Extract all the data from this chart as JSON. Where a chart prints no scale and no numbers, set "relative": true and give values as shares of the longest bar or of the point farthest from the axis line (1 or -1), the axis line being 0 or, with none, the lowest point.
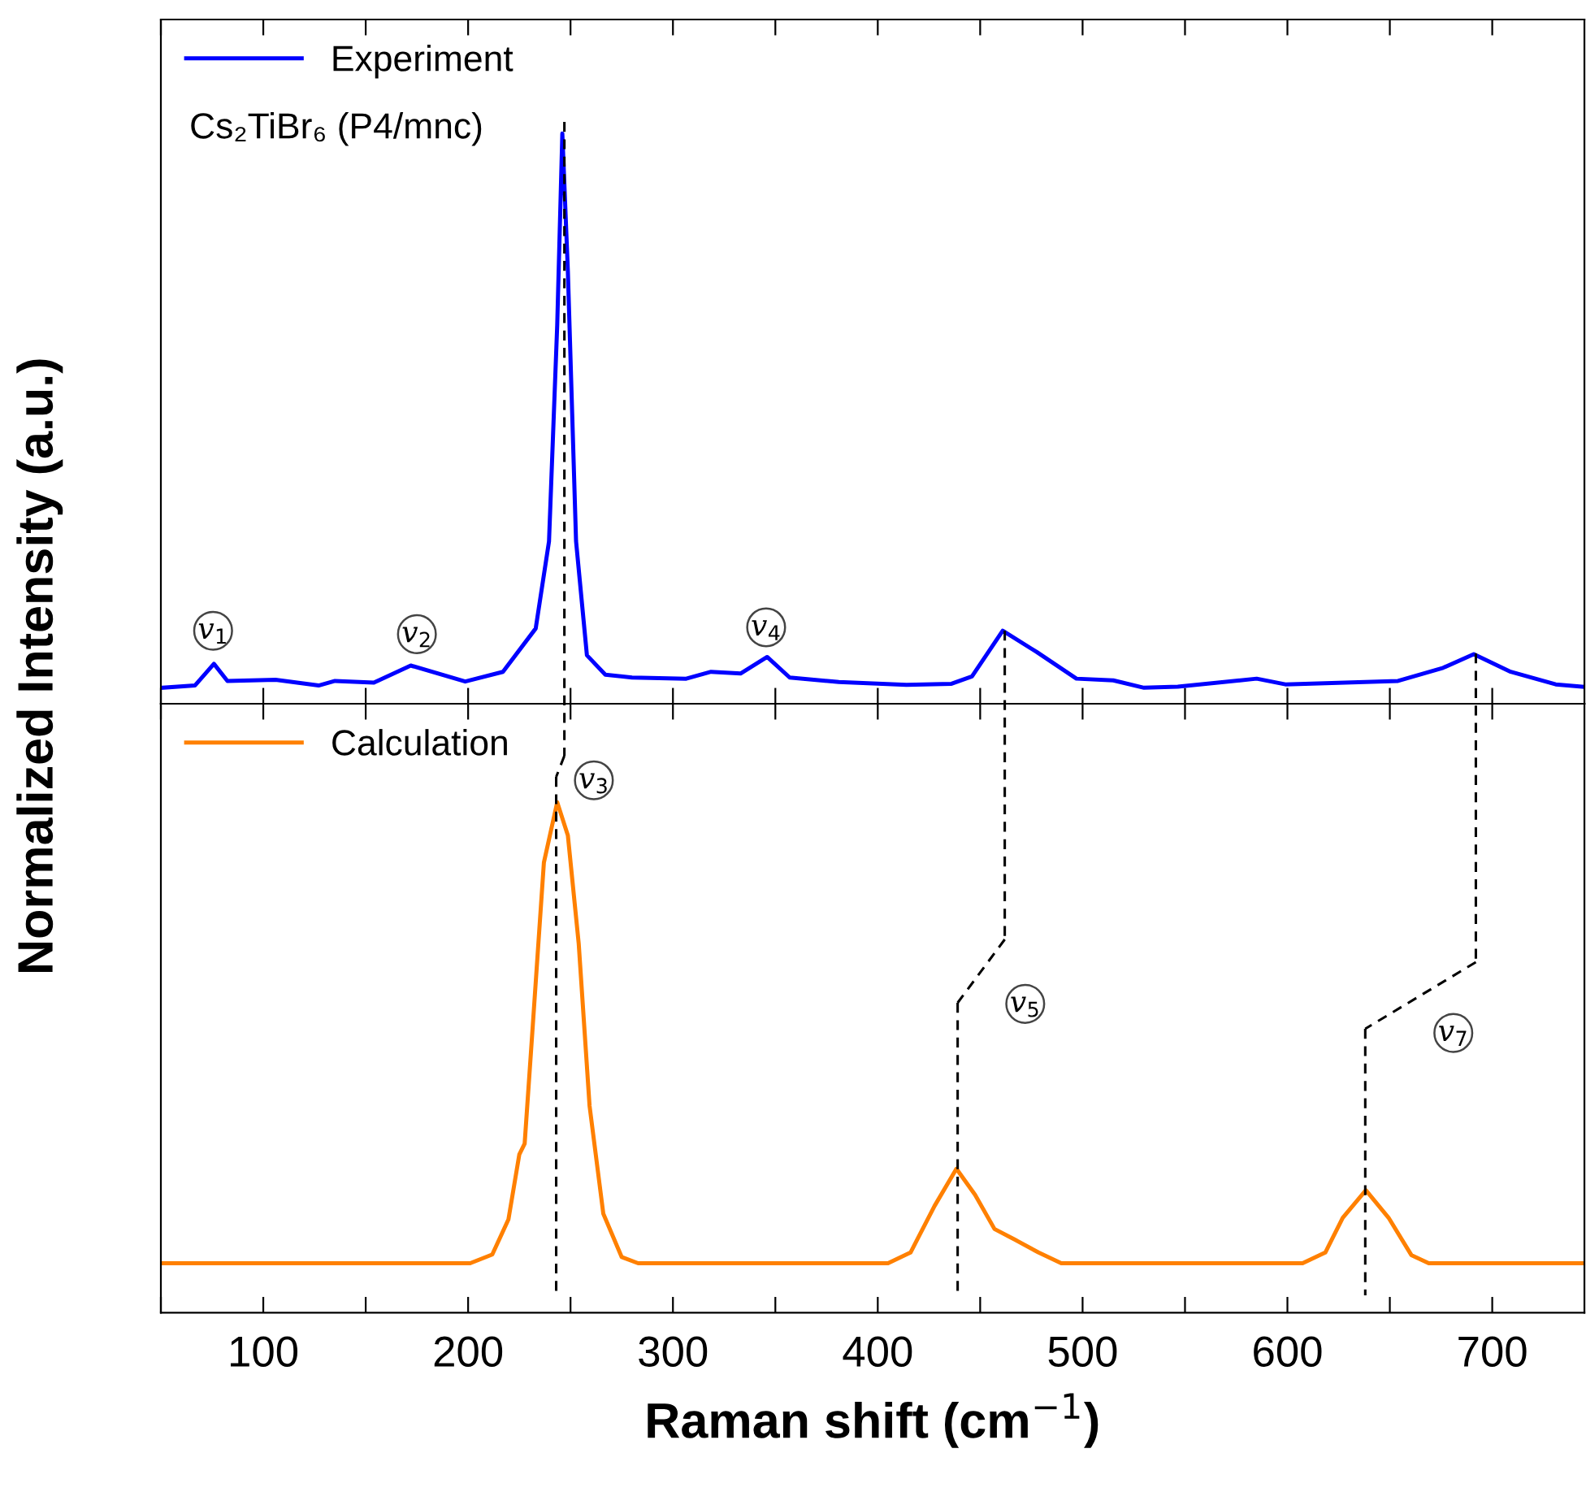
{
  "chart_data": [
    {
      "type": "line",
      "relative": true,
      "ylabel": "Normalized Intensity (a.u.)",
      "legend": "top left",
      "tick_labels": false,
      "xlim": [
        50,
        745
      ],
      "xticks": [
        {
          "value": 50,
          "label": null
        },
        100,
        {
          "value": 150,
          "label": null
        },
        200,
        {
          "value": 250,
          "label": null
        },
        300,
        {
          "value": 350,
          "label": null
        },
        400,
        {
          "value": 450,
          "label": null
        },
        500,
        {
          "value": 550,
          "label": null
        },
        600,
        {
          "value": 650,
          "label": null
        },
        700
      ],
      "series": [
        {
          "name": "Experiment",
          "color": "#0000ff",
          "x": [
            50.8,
            66.6,
            75.9,
            82.5,
            106,
            127,
            135,
            154,
            172,
            198.6,
            217,
            233,
            239.5,
            243.5,
            246,
            248.7,
            252.7,
            258,
            267,
            280,
            306.5,
            318.6,
            333,
            346,
            357,
            381,
            414,
            436,
            446,
            461,
            477.5,
            497,
            515,
            530,
            546.5,
            585,
            599,
            654,
            676,
            691,
            709,
            731,
            744
          ],
          "values": [
            0.028,
            0.032,
            0.07,
            0.04,
            0.042,
            0.032,
            0.04,
            0.037,
            0.067,
            0.039,
            0.056,
            0.132,
            0.285,
            0.664,
            1.0,
            0.759,
            0.285,
            0.085,
            0.051,
            0.046,
            0.044,
            0.056,
            0.053,
            0.082,
            0.046,
            0.038,
            0.033,
            0.035,
            0.048,
            0.128,
            0.091,
            0.044,
            0.041,
            0.028,
            0.03,
            0.044,
            0.034,
            0.04,
            0.063,
            0.087,
            0.056,
            0.034,
            0.03
          ]
        }
      ],
      "annotations": [
        "Cs₂TiBr₆ (P4/mnc)",
        {
          "text": "v$_{1}$",
          "x": 75.5,
          "y": 0.128
        },
        {
          "text": "v$_{2}$",
          "x": 175,
          "y": 0.122
        },
        {
          "text": "v$_{4}$",
          "x": 345.5,
          "y": 0.134
        }
      ],
      "ref_lines": [
        {
          "axis": "x",
          "value": 247,
          "line_style": "dashed",
          "color": "#000000"
        },
        {
          "axis": "x",
          "value": 462,
          "line_style": "dashed",
          "color": "#000000"
        },
        {
          "axis": "x",
          "value": 692,
          "line_style": "dashed",
          "color": "#000000"
        }
      ]
    },
    {
      "type": "line",
      "relative": true,
      "xlabel": "Raman shift (cm$^{−1}$)",
      "legend": "top left",
      "tick_labels": "x",
      "xlim": [
        50,
        745
      ],
      "xticks": [
        {
          "value": 50,
          "label": null
        },
        100,
        {
          "value": 150,
          "label": null
        },
        200,
        {
          "value": 250,
          "label": null
        },
        300,
        {
          "value": 350,
          "label": null
        },
        400,
        {
          "value": 450,
          "label": null
        },
        500,
        {
          "value": 550,
          "label": null
        },
        600,
        {
          "value": 650,
          "label": null
        },
        700
      ],
      "series": [
        {
          "name": "Calculation",
          "color": "#ff8000",
          "x": [
            50.8,
            201,
            211.8,
            219.7,
            225,
            227.6,
            231.6,
            237,
            243.5,
            248.7,
            254,
            259.3,
            266,
            275,
            283,
            405,
            416,
            427.7,
            438.4,
            447.5,
            457,
            467,
            478.5,
            489.6,
            607.4,
            618.5,
            627,
            638.3,
            649.4,
            660.5,
            669,
            744
          ],
          "values": [
            0.097,
            0.097,
            0.114,
            0.183,
            0.31,
            0.331,
            0.564,
            0.882,
            1.0,
            0.935,
            0.723,
            0.405,
            0.194,
            0.109,
            0.097,
            0.097,
            0.118,
            0.209,
            0.282,
            0.231,
            0.164,
            0.143,
            0.118,
            0.097,
            0.097,
            0.118,
            0.186,
            0.24,
            0.186,
            0.113,
            0.097,
            0.097
          ]
        }
      ],
      "annotations": [
        {
          "text": "v$_{3}$",
          "x": 261.4,
          "y": 1.043
        },
        {
          "text": "v$_{5}$",
          "x": 472,
          "y": 0.605
        },
        {
          "text": "v$_{7}$",
          "x": 681,
          "y": 0.548
        }
      ],
      "ref_lines": [
        {
          "axis": "x",
          "value": 243,
          "line_style": "dashed",
          "color": "#000000"
        },
        {
          "axis": "x",
          "value": 439,
          "line_style": "dashed",
          "color": "#000000"
        },
        {
          "axis": "x",
          "value": 638,
          "line_style": "dashed",
          "color": "#000000"
        }
      ]
    }
  ]
}
